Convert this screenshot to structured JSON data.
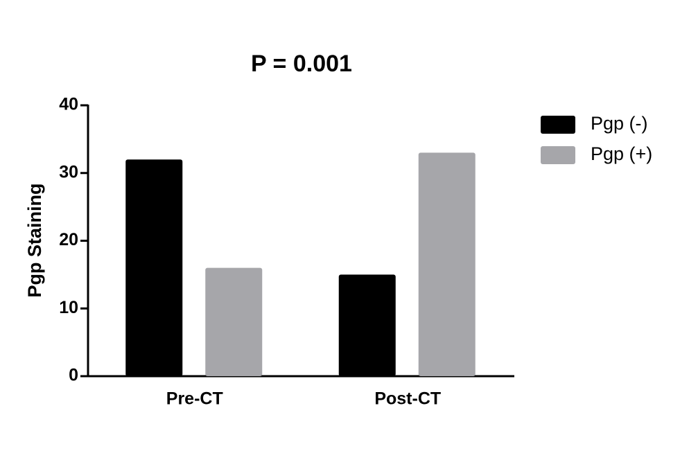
{
  "chart_data": {
    "type": "bar",
    "title": "P = 0.001",
    "y_label": "Pgp Staining",
    "categories": [
      "Pre-CT",
      "Post-CT"
    ],
    "series": [
      {
        "name": "Pgp (-)",
        "color": "#000000",
        "values": [
          32,
          15
        ]
      },
      {
        "name": "Pgp (+)",
        "color": "#a6a6aa",
        "values": [
          16,
          33
        ]
      }
    ],
    "ylim": [
      0,
      40
    ],
    "yticks": [
      0,
      10,
      20,
      30,
      40
    ],
    "legend": "right"
  }
}
